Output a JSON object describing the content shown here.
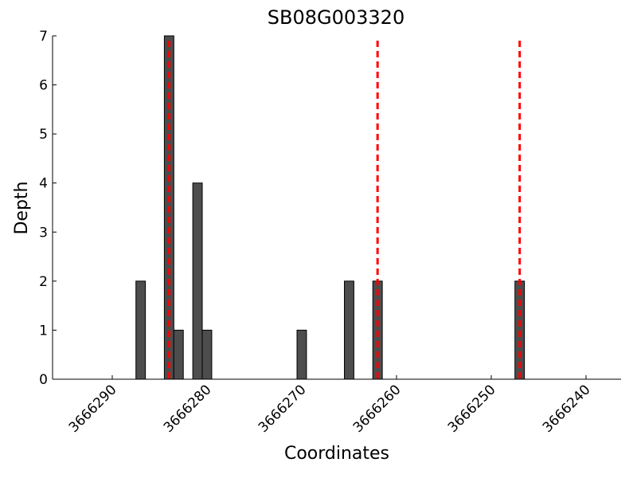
{
  "chart_data": {
    "type": "bar",
    "title": "SB08G003320",
    "x_label": "Coordinates",
    "y_label": "Depth",
    "x": [
      3666287,
      3666284,
      3666283,
      3666281,
      3666280,
      3666270,
      3666265,
      3666262,
      3666247
    ],
    "values": [
      2,
      7,
      1,
      4,
      1,
      1,
      2,
      2,
      2
    ],
    "color": "#4d4d4d",
    "xlim": [
      3666296.3,
      3666236.3
    ],
    "xticks": [
      3666290,
      3666280,
      3666270,
      3666260,
      3666250,
      3666240
    ],
    "ylim": [
      0,
      7
    ],
    "yticks": [
      0,
      1,
      2,
      3,
      4,
      5,
      6,
      7
    ],
    "vlines": [
      3666284,
      3666262,
      3666247
    ],
    "vline_color": "#ff0000"
  }
}
